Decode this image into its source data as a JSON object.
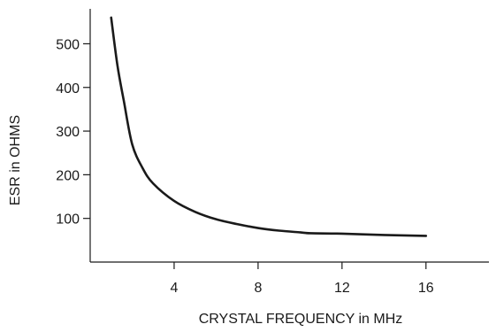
{
  "chart_data": {
    "type": "line",
    "title": "",
    "xlabel": "CRYSTAL FREQUENCY in MHz",
    "ylabel": "ESR in OHMS",
    "xlim": [
      0,
      19
    ],
    "ylim": [
      0,
      580
    ],
    "xticks": [
      4,
      8,
      12,
      16
    ],
    "yticks": [
      100,
      200,
      300,
      400,
      500
    ],
    "grid": false,
    "legend": "none",
    "line_color": "#1a1a1a",
    "series": [
      {
        "x": [
          1.0,
          1.3,
          1.6,
          2.0,
          2.5,
          3.0,
          4.0,
          5.0,
          6.0,
          7.0,
          8.0,
          9.0,
          10.0,
          10.5,
          12.0,
          14.0,
          16.0
        ],
        "values": [
          560,
          450,
          370,
          270,
          215,
          180,
          140,
          115,
          98,
          87,
          78,
          72,
          68,
          66,
          65,
          62,
          60
        ]
      }
    ]
  }
}
